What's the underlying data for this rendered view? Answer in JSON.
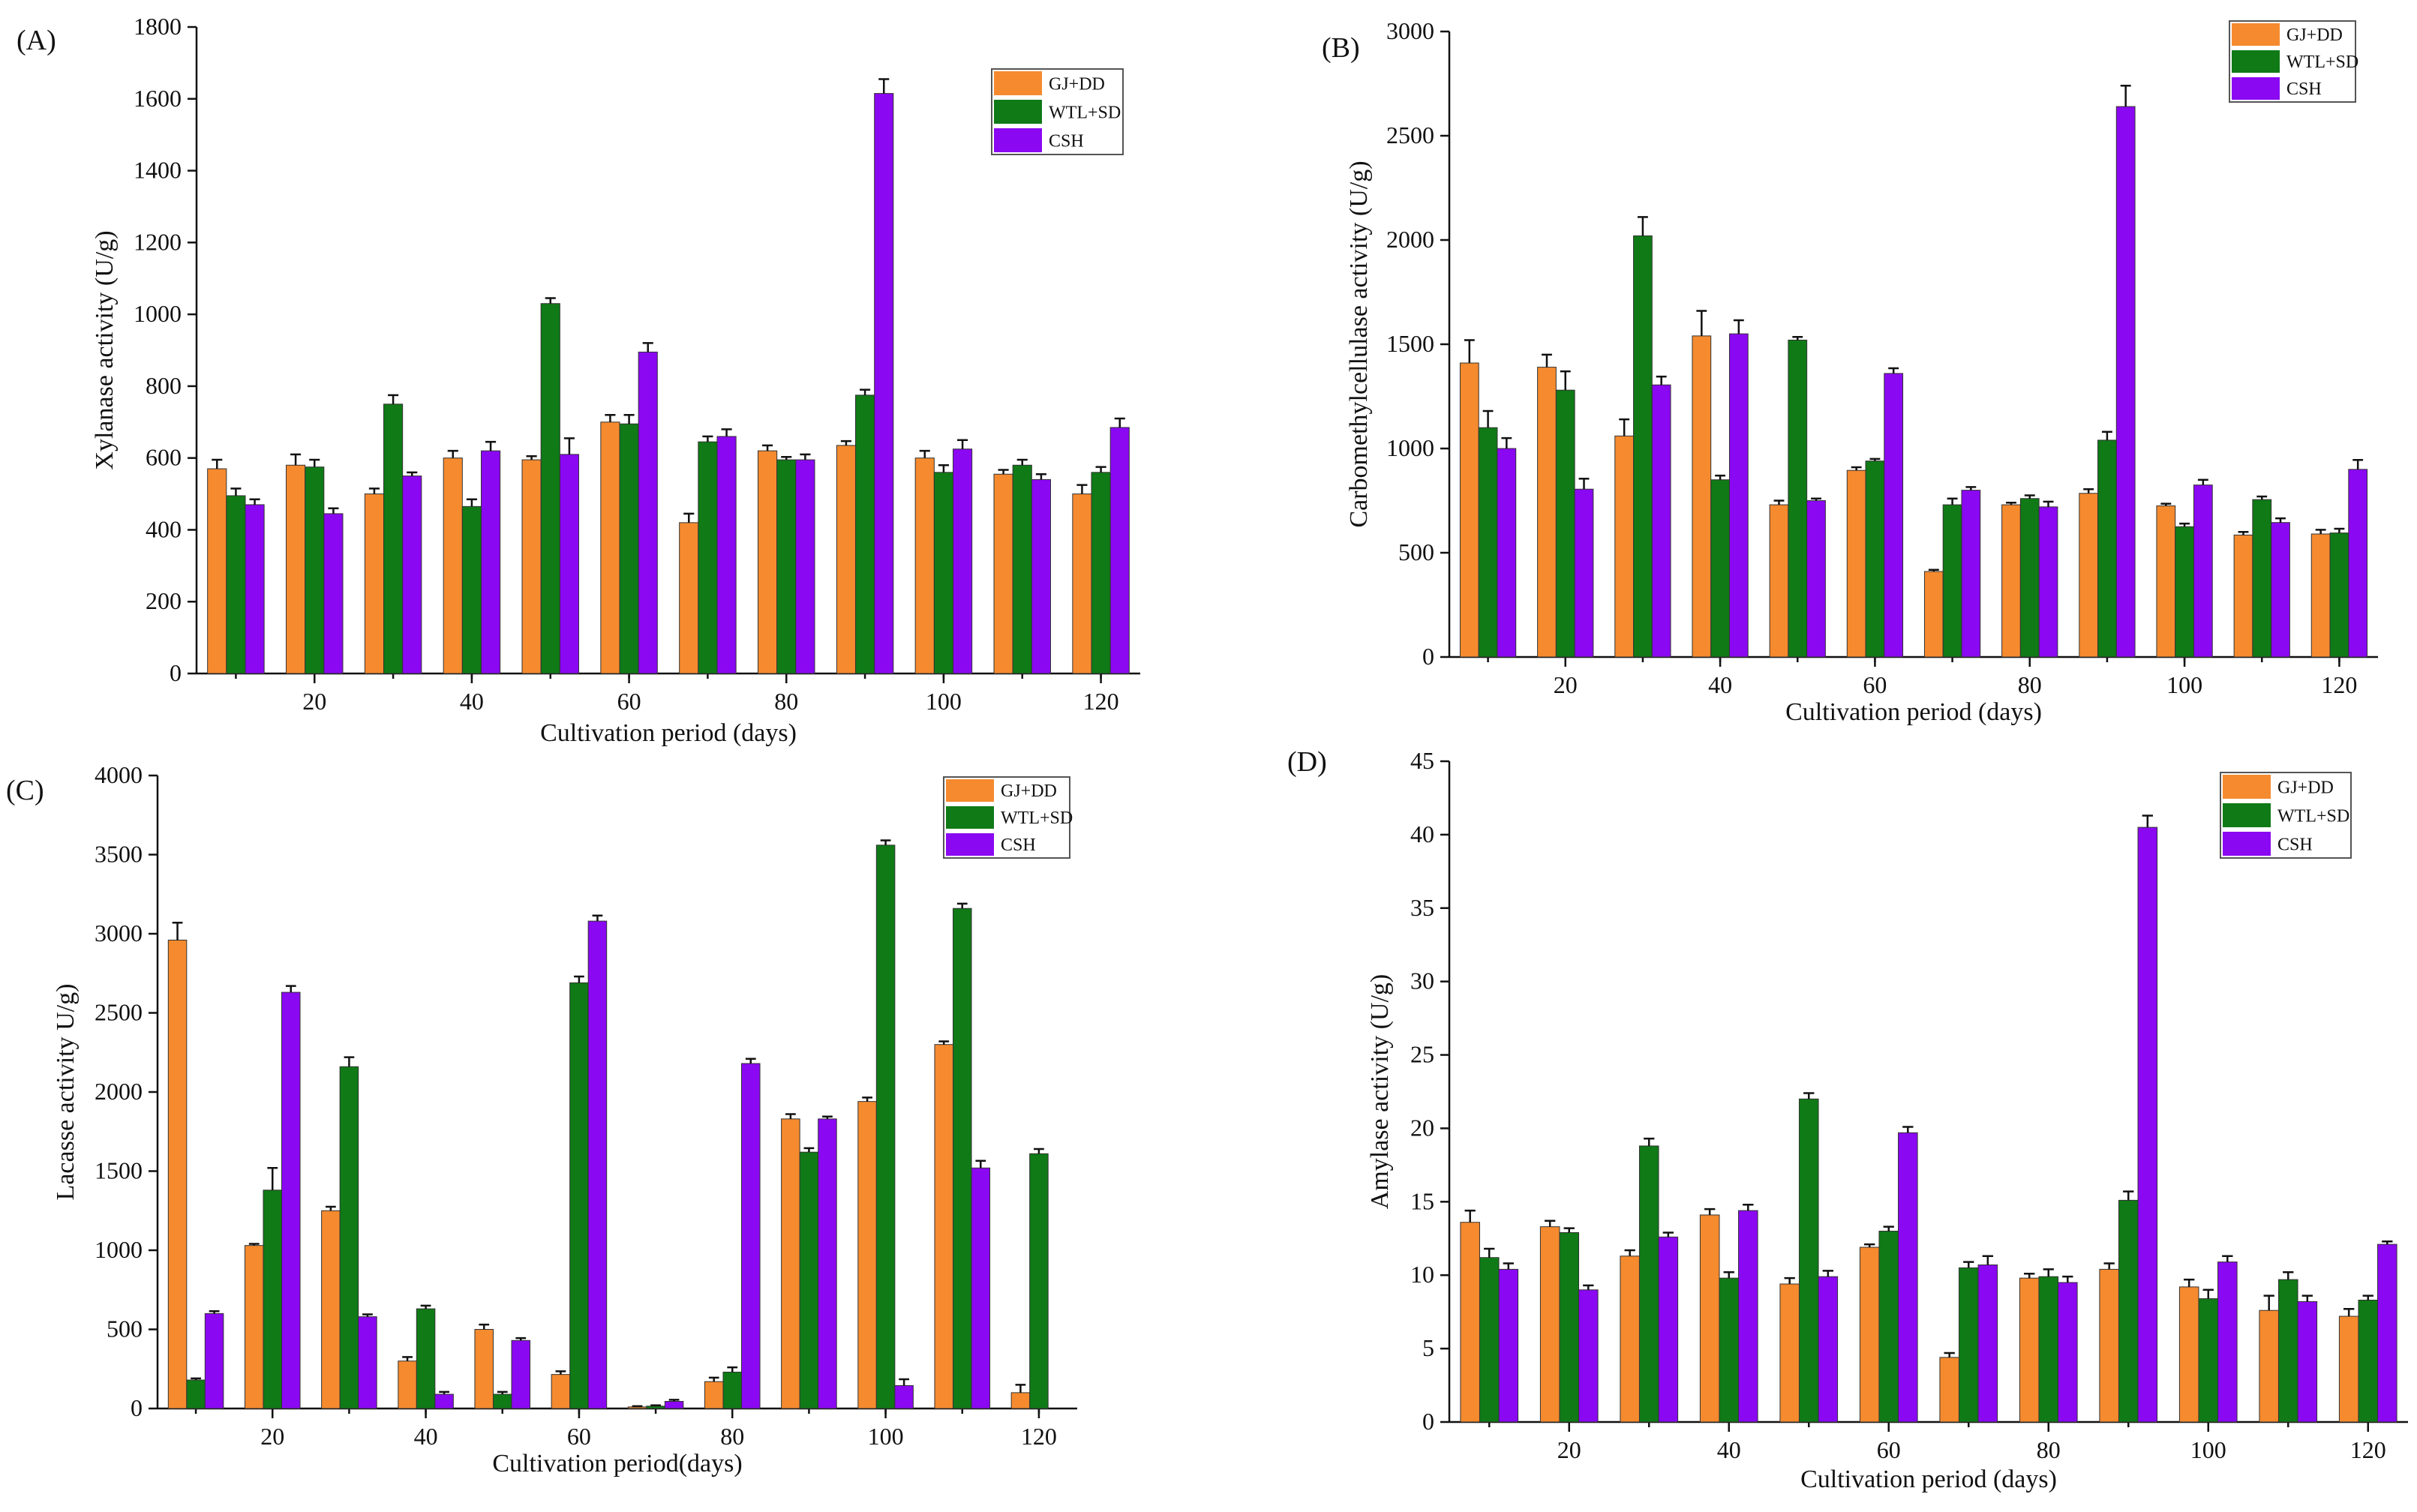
{
  "colors": {
    "GJ+DD": "#f58a2e",
    "WTL+SD": "#0f7a16",
    "CSH": "#8a08f2"
  },
  "chart_data": [
    {
      "panel_label": "(A)",
      "type": "bar",
      "xlabel": "Cultivation period (days)",
      "ylabel": "Xylanase activity (U/g)",
      "ylim": [
        0,
        1800
      ],
      "yticks": [
        0,
        200,
        400,
        600,
        800,
        1000,
        1200,
        1400,
        1600,
        1800
      ],
      "x": [
        10,
        20,
        30,
        40,
        50,
        60,
        70,
        80,
        90,
        100,
        110,
        120
      ],
      "xtick_labels": [
        "20",
        "40",
        "60",
        "80",
        "100",
        "120"
      ],
      "xtick_values": [
        20,
        40,
        60,
        80,
        100,
        120
      ],
      "legend_position": "top-right",
      "series": [
        {
          "name": "GJ+DD",
          "values": [
            570,
            580,
            500,
            600,
            595,
            700,
            420,
            620,
            635,
            600,
            555,
            500
          ],
          "errors": [
            25,
            30,
            15,
            20,
            10,
            20,
            25,
            15,
            12,
            20,
            12,
            25
          ]
        },
        {
          "name": "WTL+SD",
          "values": [
            495,
            575,
            750,
            465,
            1030,
            695,
            645,
            595,
            775,
            560,
            580,
            560
          ],
          "errors": [
            20,
            20,
            25,
            20,
            15,
            25,
            15,
            8,
            15,
            20,
            15,
            15
          ]
        },
        {
          "name": "CSH",
          "values": [
            470,
            445,
            550,
            620,
            610,
            895,
            660,
            595,
            1615,
            625,
            540,
            685
          ],
          "errors": [
            15,
            15,
            10,
            25,
            45,
            25,
            20,
            15,
            40,
            25,
            15,
            25
          ]
        }
      ]
    },
    {
      "panel_label": "(B)",
      "type": "bar",
      "xlabel": "Cultivation period (days)",
      "ylabel": "Carbomethylcellulase activity (U/g)",
      "ylim": [
        0,
        3000
      ],
      "yticks": [
        0,
        500,
        1000,
        1500,
        2000,
        2500,
        3000
      ],
      "x": [
        10,
        20,
        30,
        40,
        50,
        60,
        70,
        80,
        90,
        100,
        110,
        120
      ],
      "xtick_labels": [
        "20",
        "40",
        "60",
        "80",
        "100",
        "120"
      ],
      "xtick_values": [
        20,
        40,
        60,
        80,
        100,
        120
      ],
      "legend_position": "top-right",
      "series": [
        {
          "name": "GJ+DD",
          "values": [
            1410,
            1390,
            1060,
            1540,
            730,
            895,
            410,
            730,
            785,
            725,
            585,
            590
          ],
          "errors": [
            110,
            60,
            80,
            120,
            20,
            15,
            8,
            10,
            20,
            10,
            15,
            20
          ]
        },
        {
          "name": "WTL+SD",
          "values": [
            1100,
            1280,
            2020,
            850,
            1520,
            940,
            730,
            760,
            1040,
            625,
            755,
            595
          ],
          "errors": [
            80,
            90,
            90,
            20,
            15,
            10,
            30,
            15,
            40,
            15,
            15,
            20
          ]
        },
        {
          "name": "CSH",
          "values": [
            1000,
            805,
            1305,
            1550,
            750,
            1360,
            800,
            720,
            2640,
            825,
            645,
            900
          ],
          "errors": [
            50,
            50,
            40,
            65,
            10,
            25,
            15,
            25,
            100,
            25,
            20,
            45
          ]
        }
      ]
    },
    {
      "panel_label": "(C)",
      "type": "bar",
      "xlabel": "Cultivation period(days)",
      "ylabel": "Lacasse activity U/g)",
      "ylim": [
        0,
        4000
      ],
      "yticks": [
        0,
        500,
        1000,
        1500,
        2000,
        2500,
        3000,
        3500,
        4000
      ],
      "x": [
        10,
        20,
        30,
        40,
        50,
        60,
        70,
        80,
        90,
        100,
        110,
        120
      ],
      "xtick_labels": [
        "20",
        "40",
        "60",
        "80",
        "100",
        "120"
      ],
      "xtick_values": [
        20,
        40,
        60,
        80,
        100,
        120
      ],
      "legend_position": "top-right",
      "series": [
        {
          "name": "GJ+DD",
          "values": [
            2960,
            1030,
            1250,
            300,
            500,
            215,
            10,
            170,
            1830,
            1940,
            2300,
            100
          ],
          "errors": [
            110,
            10,
            25,
            25,
            30,
            20,
            5,
            25,
            30,
            25,
            20,
            50
          ]
        },
        {
          "name": "WTL+SD",
          "values": [
            180,
            1380,
            2160,
            630,
            90,
            2690,
            15,
            230,
            1620,
            3560,
            3160,
            1610
          ],
          "errors": [
            10,
            140,
            60,
            20,
            15,
            40,
            5,
            30,
            25,
            30,
            30,
            30
          ]
        },
        {
          "name": "CSH",
          "values": [
            600,
            2630,
            580,
            90,
            430,
            3080,
            45,
            2180,
            1830,
            145,
            1520,
            0
          ],
          "errors": [
            15,
            40,
            15,
            15,
            15,
            35,
            10,
            30,
            15,
            40,
            45,
            0
          ]
        }
      ]
    },
    {
      "panel_label": "(D)",
      "type": "bar",
      "xlabel": "Cultivation period (days)",
      "ylabel": "Amylase activity (U/g)",
      "ylim": [
        0,
        45
      ],
      "yticks": [
        0,
        5,
        10,
        15,
        20,
        25,
        30,
        35,
        40,
        45
      ],
      "x": [
        10,
        20,
        30,
        40,
        50,
        60,
        70,
        80,
        90,
        100,
        110,
        120
      ],
      "xtick_labels": [
        "20",
        "40",
        "60",
        "80",
        "100",
        "120"
      ],
      "xtick_values": [
        20,
        40,
        60,
        80,
        100,
        120
      ],
      "legend_position": "top-right",
      "series": [
        {
          "name": "GJ+DD",
          "values": [
            13.6,
            13.3,
            11.3,
            14.1,
            9.4,
            11.9,
            4.4,
            9.8,
            10.4,
            9.2,
            7.6,
            7.2
          ],
          "errors": [
            0.8,
            0.4,
            0.4,
            0.4,
            0.4,
            0.2,
            0.3,
            0.3,
            0.4,
            0.5,
            1.0,
            0.5
          ]
        },
        {
          "name": "WTL+SD",
          "values": [
            11.2,
            12.9,
            18.8,
            9.8,
            22.0,
            13.0,
            10.5,
            9.9,
            15.1,
            8.4,
            9.7,
            8.3
          ],
          "errors": [
            0.6,
            0.3,
            0.5,
            0.4,
            0.4,
            0.3,
            0.4,
            0.5,
            0.6,
            0.6,
            0.5,
            0.3
          ]
        },
        {
          "name": "CSH",
          "values": [
            10.4,
            9.0,
            12.6,
            14.4,
            9.9,
            19.7,
            10.7,
            9.5,
            40.5,
            10.9,
            8.2,
            12.1
          ],
          "errors": [
            0.4,
            0.3,
            0.3,
            0.4,
            0.4,
            0.4,
            0.6,
            0.4,
            0.8,
            0.4,
            0.4,
            0.2
          ]
        }
      ]
    }
  ]
}
